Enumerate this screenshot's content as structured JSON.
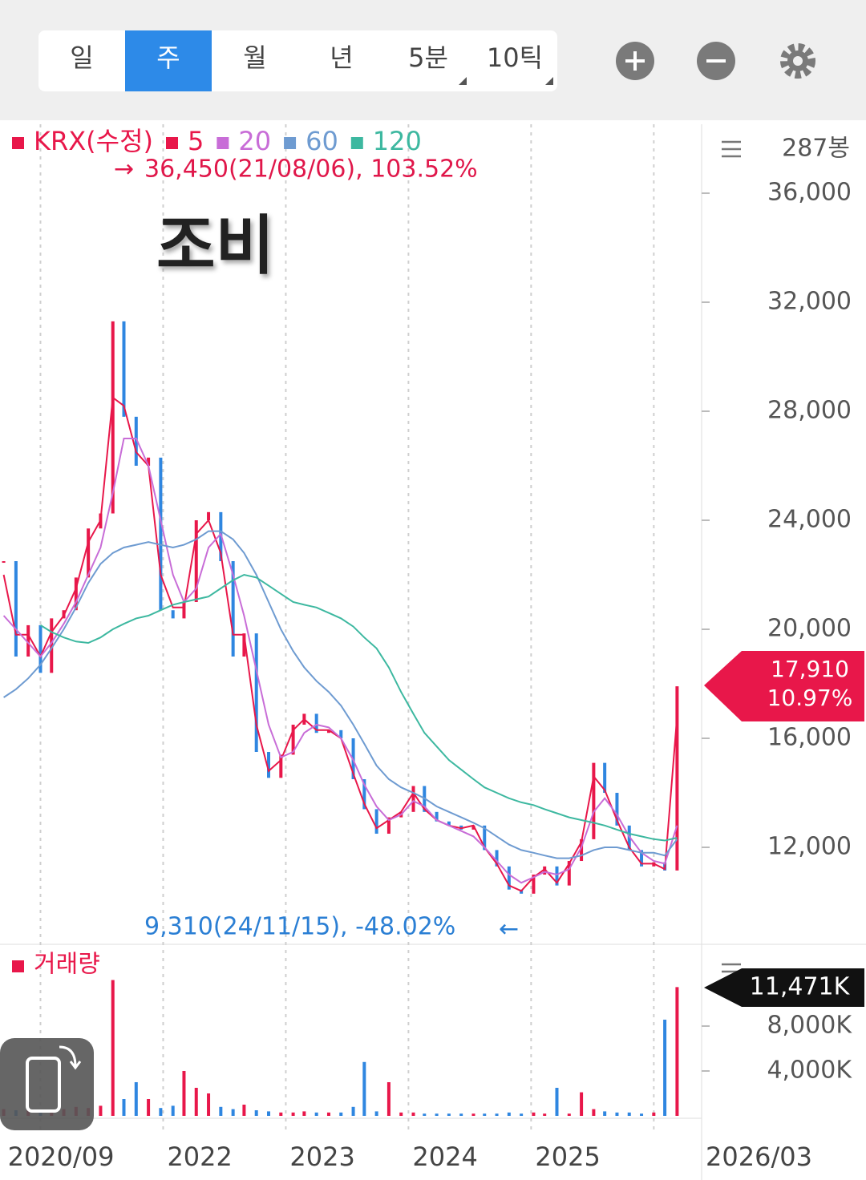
{
  "toolbar": {
    "tabs": [
      "일",
      "주",
      "월",
      "년",
      "5분",
      "10틱"
    ],
    "selected": 1
  },
  "chart_data": [
    {
      "type": "line",
      "title": "조비",
      "bar_count": "287봉",
      "max_annotation": "36,450(21/08/06), 103.52%",
      "min_annotation": "9,310(24/11/15), -48.02%",
      "current": {
        "value": 17910,
        "label": "17,910"
      },
      "change": {
        "value": 10.97,
        "label": "10.97%"
      },
      "last_date": "2026/03",
      "x": [
        2020.7,
        2020.8,
        2020.9,
        2021.0,
        2021.09,
        2021.19,
        2021.29,
        2021.39,
        2021.49,
        2021.59,
        2021.68,
        2021.78,
        2021.88,
        2021.98,
        2022.08,
        2022.17,
        2022.27,
        2022.37,
        2022.47,
        2022.57,
        2022.66,
        2022.76,
        2022.86,
        2022.96,
        2023.06,
        2023.15,
        2023.25,
        2023.35,
        2023.45,
        2023.55,
        2023.64,
        2023.74,
        2023.84,
        2023.94,
        2024.04,
        2024.13,
        2024.23,
        2024.33,
        2024.43,
        2024.53,
        2024.62,
        2024.72,
        2024.82,
        2024.92,
        2025.02,
        2025.11,
        2025.21,
        2025.31,
        2025.41,
        2025.51,
        2025.6,
        2025.7,
        2025.8,
        2025.9,
        2026.0,
        2026.09,
        2026.19
      ],
      "series": [
        {
          "name": "KRX(수정)",
          "color": "#e8174a",
          "down_color": "#2f86e0",
          "values": [
            22500,
            19000,
            20150,
            18400,
            20400,
            20700,
            21900,
            23700,
            24250,
            31300,
            27800,
            26000,
            26300,
            20700,
            20400,
            21000,
            24000,
            24300,
            22500,
            19000,
            19850,
            15500,
            14550,
            15400,
            16500,
            16900,
            16200,
            16300,
            16000,
            14500,
            13400,
            12500,
            13100,
            13300,
            14250,
            13300,
            12950,
            12800,
            12650,
            12800,
            11900,
            11300,
            10450,
            10300,
            11000,
            11300,
            10600,
            11500,
            12300,
            15100,
            14000,
            12800,
            11900,
            11300,
            11450,
            11150,
            17910
          ]
        },
        {
          "name": "5",
          "color": "#e8174a",
          "values": [
            22000,
            19800,
            19800,
            19000,
            19900,
            20500,
            21500,
            23200,
            24000,
            28500,
            28200,
            26500,
            26000,
            22000,
            20800,
            20800,
            23500,
            24000,
            22800,
            19800,
            19800,
            16500,
            14800,
            15200,
            16300,
            16700,
            16300,
            16300,
            16000,
            14700,
            13600,
            12700,
            13000,
            13300,
            14000,
            13400,
            13000,
            12800,
            12700,
            12800,
            12000,
            11400,
            10600,
            10400,
            10900,
            11200,
            10700,
            11400,
            12200,
            14600,
            14100,
            13000,
            12000,
            11400,
            11400,
            11200,
            16800
          ]
        },
        {
          "name": "20",
          "color": "#c86dd7",
          "values": [
            20500,
            20000,
            19500,
            19000,
            19500,
            20200,
            21000,
            22000,
            23000,
            25000,
            27000,
            27000,
            26000,
            24000,
            22000,
            21000,
            21500,
            23000,
            23500,
            22000,
            20500,
            18500,
            16500,
            15300,
            15500,
            16200,
            16500,
            16400,
            16000,
            15200,
            14300,
            13500,
            13000,
            13200,
            13700,
            13500,
            13000,
            12800,
            12600,
            12400,
            12000,
            11500,
            11000,
            10700,
            10900,
            11100,
            11000,
            11200,
            12000,
            13300,
            13800,
            13200,
            12400,
            11800,
            11500,
            11400,
            12800
          ]
        },
        {
          "name": "60",
          "color": "#6e9bd1",
          "values": [
            17500,
            17800,
            18200,
            18700,
            19300,
            20000,
            20800,
            21700,
            22400,
            22800,
            23000,
            23100,
            23200,
            23100,
            23000,
            23100,
            23300,
            23600,
            23600,
            23300,
            22800,
            22000,
            21000,
            20000,
            19200,
            18600,
            18100,
            17700,
            17200,
            16500,
            15800,
            15000,
            14500,
            14200,
            14000,
            13800,
            13500,
            13300,
            13100,
            12900,
            12700,
            12400,
            12100,
            11900,
            11800,
            11700,
            11600,
            11600,
            11700,
            11900,
            12000,
            12000,
            11900,
            11800,
            11800,
            11700,
            12300
          ]
        },
        {
          "name": "120",
          "color": "#3db8a0",
          "values": [
            null,
            null,
            null,
            20150,
            19900,
            19700,
            19550,
            19500,
            19700,
            20000,
            20200,
            20400,
            20500,
            20700,
            20900,
            21000,
            21100,
            21200,
            21500,
            21800,
            22000,
            21900,
            21600,
            21300,
            21000,
            20900,
            20800,
            20600,
            20400,
            20100,
            19700,
            19300,
            18600,
            17700,
            16900,
            16200,
            15700,
            15200,
            14850,
            14500,
            14200,
            14000,
            13800,
            13650,
            13550,
            13400,
            13250,
            13100,
            13000,
            12900,
            12800,
            12650,
            12500,
            12400,
            12300,
            12250,
            12350
          ]
        }
      ],
      "xlim": [
        2020.67,
        2026.39
      ],
      "xticks": [
        {
          "value": 2020.7,
          "label": "2020/09"
        },
        {
          "value": 2022,
          "label": "2022"
        },
        {
          "value": 2023,
          "label": "2023"
        },
        {
          "value": 2024,
          "label": "2024"
        },
        {
          "value": 2025,
          "label": "2025"
        }
      ],
      "xgrid": [
        2021,
        2022,
        2023,
        2024,
        2025,
        2026
      ],
      "ylim": [
        8530,
        38530
      ],
      "yticks": [
        {
          "value": 12000,
          "label": "12,000"
        },
        {
          "value": 16000,
          "label": "16,000"
        },
        {
          "value": 20000,
          "label": "20,000"
        },
        {
          "value": 24000,
          "label": "24,000"
        },
        {
          "value": 28000,
          "label": "28,000"
        },
        {
          "value": 32000,
          "label": "32,000"
        },
        {
          "value": 36000,
          "label": "36,000"
        }
      ]
    },
    {
      "type": "bar",
      "title": "거래량",
      "color": "#e8174a",
      "down_color": "#2f86e0",
      "current": {
        "value": 11471,
        "label": "11,471K"
      },
      "values": [
        600,
        500,
        700,
        400,
        500,
        600,
        800,
        700,
        900,
        12100,
        1500,
        3000,
        1500,
        700,
        900,
        4000,
        2500,
        2000,
        800,
        600,
        1000,
        500,
        400,
        300,
        300,
        400,
        300,
        300,
        300,
        800,
        4800,
        400,
        3000,
        300,
        300,
        200,
        200,
        200,
        200,
        200,
        200,
        200,
        300,
        200,
        300,
        200,
        2500,
        200,
        2100,
        600,
        400,
        300,
        300,
        200,
        300,
        8570,
        11471
      ],
      "ylim": [
        0,
        15140
      ],
      "yticks": [
        {
          "value": 4000,
          "label": "4,000K"
        },
        {
          "value": 8000,
          "label": "8,000K"
        }
      ]
    }
  ]
}
